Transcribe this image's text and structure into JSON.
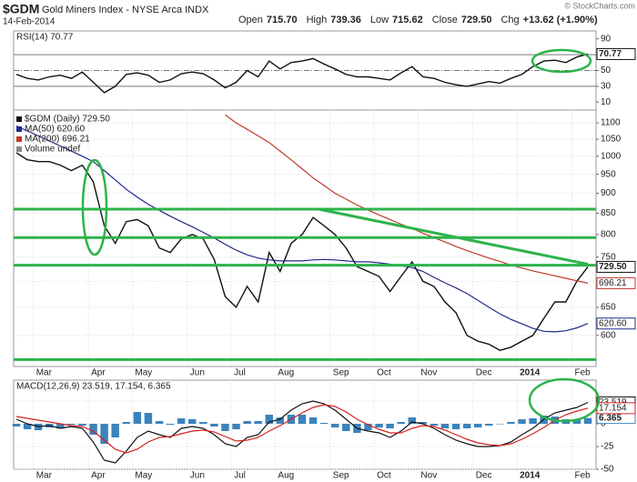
{
  "header": {
    "symbol": "$GDM",
    "name": "Gold Miners Index - NYSE Arca INDX",
    "date": "14-Feb-2014",
    "credit": "© StockCharts.com",
    "stats": [
      {
        "label": "Open",
        "value": "715.70"
      },
      {
        "label": "High",
        "value": "739.36"
      },
      {
        "label": "Low",
        "value": "715.62"
      },
      {
        "label": "Close",
        "value": "729.50"
      },
      {
        "label": "Chg",
        "value": "+13.62 (+1.90%)"
      }
    ]
  },
  "chart_data": [
    {
      "type": "line",
      "label": "RSI(14) 70.77",
      "ylim": [
        0,
        100
      ],
      "yticks": [
        90,
        70,
        50,
        30,
        10
      ],
      "reference_lines": [
        70,
        50,
        30
      ],
      "grid": false,
      "series": [
        {
          "color": "#111111",
          "last_label": "70.77",
          "values": [
            45,
            40,
            38,
            42,
            44,
            40,
            48,
            35,
            22,
            30,
            45,
            47,
            44,
            35,
            38,
            46,
            48,
            46,
            38,
            28,
            35,
            50,
            42,
            62,
            52,
            60,
            62,
            65,
            58,
            52,
            45,
            42,
            42,
            40,
            38,
            47,
            55,
            42,
            40,
            35,
            32,
            30,
            33,
            36,
            34,
            40,
            45,
            55,
            62,
            63,
            60,
            67,
            70.77
          ]
        }
      ]
    },
    {
      "type": "line",
      "log_scale": true,
      "grid": true,
      "ylim": [
        549,
        1141
      ],
      "yticks": [
        600,
        650,
        700,
        750,
        800,
        850,
        900,
        950,
        1000,
        1050,
        1100
      ],
      "categories": [
        null,
        null,
        "Mar",
        null,
        null,
        null,
        null,
        "Apr",
        null,
        null,
        null,
        "May",
        null,
        null,
        null,
        null,
        "Jun",
        null,
        null,
        null,
        "Jul",
        null,
        null,
        null,
        "Aug",
        null,
        null,
        null,
        null,
        "Sep",
        null,
        null,
        null,
        "Oct",
        null,
        null,
        null,
        "Nov",
        null,
        null,
        null,
        null,
        "Dec",
        null,
        null,
        null,
        "2014",
        null,
        null,
        null,
        null,
        "Feb",
        null
      ],
      "legend_note": "Volume undef",
      "annotation_color": "#2db34a",
      "hlines": [
        860,
        793,
        733,
        560
      ],
      "trendline": {
        "start": 860,
        "end": 735
      },
      "series": [
        {
          "name": "$GDM (Daily) 729.50",
          "color": "#111111",
          "last_label": "729.50",
          "values": [
            1010,
            990,
            985,
            985,
            975,
            960,
            975,
            930,
            820,
            780,
            830,
            835,
            820,
            770,
            760,
            790,
            800,
            790,
            745,
            670,
            650,
            690,
            660,
            760,
            720,
            780,
            800,
            840,
            820,
            800,
            770,
            730,
            720,
            710,
            680,
            710,
            740,
            700,
            690,
            660,
            640,
            600,
            590,
            585,
            575,
            580,
            590,
            600,
            630,
            660,
            660,
            700,
            729.5
          ]
        },
        {
          "name": "MA(50) 620.60",
          "color": "#1f2a8c",
          "last_label": "620.60",
          "values": [
            1090,
            1075,
            1060,
            1045,
            1030,
            1015,
            1000,
            985,
            960,
            935,
            910,
            890,
            872,
            857,
            843,
            830,
            818,
            805,
            792,
            778,
            765,
            755,
            748,
            744,
            742,
            742,
            742,
            744,
            745,
            744,
            742,
            740,
            740,
            738,
            735,
            732,
            728,
            720,
            708,
            697,
            687,
            676,
            663,
            650,
            638,
            628,
            620,
            612,
            607,
            606,
            608,
            613,
            620.6
          ]
        },
        {
          "name": "MA(200) 696.21",
          "color": "#c0392b",
          "last_label": "696.21",
          "values": [
            null,
            null,
            null,
            null,
            null,
            null,
            null,
            null,
            null,
            null,
            null,
            null,
            null,
            null,
            null,
            null,
            null,
            null,
            null,
            1125,
            1100,
            1080,
            1060,
            1040,
            1015,
            990,
            965,
            940,
            920,
            900,
            885,
            870,
            858,
            846,
            835,
            824,
            814,
            803,
            793,
            783,
            773,
            764,
            756,
            748,
            741,
            733,
            727,
            721,
            716,
            711,
            706,
            701,
            696.21
          ]
        }
      ]
    },
    {
      "type": "line",
      "label": "MACD(12,26,9) 23.519, 17.154, 6.365",
      "grid": true,
      "ylim": [
        -50,
        48
      ],
      "yticks": [
        25,
        0,
        -25,
        -50
      ],
      "categories": [
        null,
        null,
        "Mar",
        null,
        null,
        null,
        null,
        "Apr",
        null,
        null,
        null,
        "May",
        null,
        null,
        null,
        null,
        "Jun",
        null,
        null,
        null,
        "Jul",
        null,
        null,
        null,
        "Aug",
        null,
        null,
        null,
        null,
        "Sep",
        null,
        null,
        null,
        "Oct",
        null,
        null,
        null,
        "Nov",
        null,
        null,
        null,
        null,
        "Dec",
        null,
        null,
        null,
        "2014",
        null,
        null,
        null,
        null,
        "Feb",
        null
      ],
      "series": [
        {
          "style": "bar",
          "color": "#3b83bd",
          "last_label": "6.365",
          "values": [
            -3,
            -6,
            -7,
            -4,
            -5,
            -1,
            -2,
            -12,
            -22,
            -15,
            2,
            13,
            12,
            3,
            -1,
            6,
            5,
            2,
            -3,
            -8,
            -6,
            3,
            3,
            10,
            7,
            10,
            10,
            7,
            1,
            -4,
            -8,
            -10,
            -7,
            -4,
            -5,
            2,
            7,
            2,
            -2,
            -5,
            -6,
            -5,
            -4,
            -2,
            0,
            2,
            5,
            6,
            9,
            8,
            5,
            4,
            6.365
          ]
        },
        {
          "style": "line",
          "color": "#111111",
          "last_label": "23.519",
          "values": [
            5,
            0,
            -3,
            -2,
            -5,
            -3,
            -5,
            -20,
            -40,
            -43,
            -30,
            -15,
            -8,
            -12,
            -15,
            -5,
            -3,
            -5,
            -12,
            -22,
            -25,
            -15,
            -12,
            2,
            5,
            15,
            22,
            25,
            22,
            15,
            5,
            -5,
            -8,
            -10,
            -15,
            -8,
            2,
            0,
            -5,
            -12,
            -18,
            -22,
            -25,
            -25,
            -24,
            -20,
            -12,
            -5,
            5,
            12,
            15,
            18,
            23.519
          ]
        },
        {
          "style": "line",
          "color": "#d62020",
          "last_label": "17.154",
          "values": [
            8,
            6,
            4,
            2,
            0,
            -2,
            -3,
            -8,
            -18,
            -28,
            -32,
            -28,
            -20,
            -15,
            -14,
            -11,
            -8,
            -7,
            -9,
            -14,
            -19,
            -18,
            -15,
            -8,
            -2,
            5,
            12,
            18,
            21,
            19,
            13,
            5,
            -1,
            -6,
            -10,
            -10,
            -5,
            -2,
            -3,
            -7,
            -12,
            -17,
            -21,
            -23,
            -24,
            -22,
            -17,
            -11,
            -4,
            4,
            10,
            14,
            17.154
          ]
        }
      ]
    }
  ]
}
